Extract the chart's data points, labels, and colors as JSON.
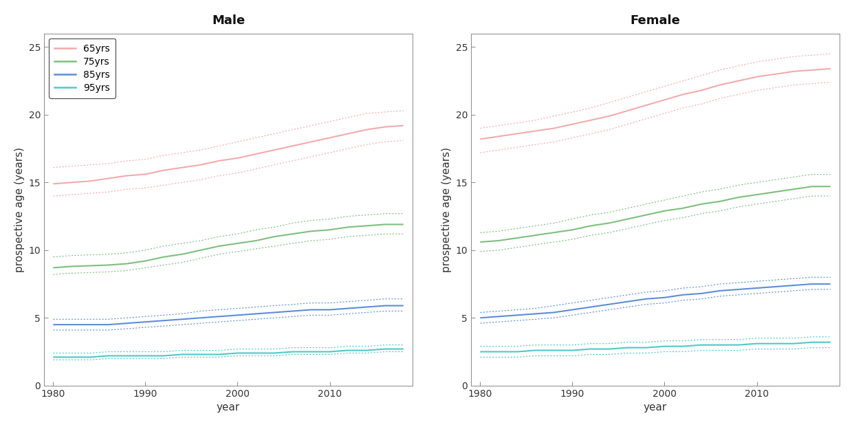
{
  "years": [
    1980,
    1982,
    1984,
    1986,
    1988,
    1990,
    1992,
    1994,
    1996,
    1998,
    2000,
    2002,
    2004,
    2006,
    2008,
    2010,
    2012,
    2014,
    2016,
    2018
  ],
  "male": {
    "65yrs": {
      "mid": [
        14.9,
        15.0,
        15.1,
        15.3,
        15.5,
        15.6,
        15.9,
        16.1,
        16.3,
        16.6,
        16.8,
        17.1,
        17.4,
        17.7,
        18.0,
        18.3,
        18.6,
        18.9,
        19.1,
        19.2
      ],
      "lo": [
        14.0,
        14.1,
        14.2,
        14.3,
        14.5,
        14.6,
        14.8,
        15.0,
        15.2,
        15.5,
        15.7,
        16.0,
        16.3,
        16.6,
        16.9,
        17.2,
        17.5,
        17.8,
        18.0,
        18.1
      ],
      "hi": [
        16.1,
        16.2,
        16.3,
        16.4,
        16.6,
        16.7,
        17.0,
        17.2,
        17.4,
        17.7,
        18.0,
        18.3,
        18.6,
        18.9,
        19.2,
        19.5,
        19.8,
        20.1,
        20.2,
        20.3
      ]
    },
    "75yrs": {
      "mid": [
        8.7,
        8.8,
        8.85,
        8.9,
        9.0,
        9.2,
        9.5,
        9.7,
        10.0,
        10.3,
        10.5,
        10.7,
        11.0,
        11.2,
        11.4,
        11.5,
        11.7,
        11.8,
        11.9,
        11.9
      ],
      "lo": [
        8.2,
        8.3,
        8.35,
        8.4,
        8.5,
        8.7,
        8.9,
        9.1,
        9.4,
        9.7,
        9.9,
        10.1,
        10.3,
        10.5,
        10.7,
        10.8,
        11.0,
        11.1,
        11.2,
        11.2
      ],
      "hi": [
        9.5,
        9.6,
        9.65,
        9.7,
        9.8,
        10.0,
        10.3,
        10.5,
        10.7,
        11.0,
        11.2,
        11.5,
        11.7,
        12.0,
        12.2,
        12.3,
        12.5,
        12.6,
        12.7,
        12.7
      ]
    },
    "85yrs": {
      "mid": [
        4.5,
        4.5,
        4.5,
        4.5,
        4.6,
        4.7,
        4.8,
        4.9,
        5.0,
        5.1,
        5.2,
        5.3,
        5.4,
        5.5,
        5.6,
        5.6,
        5.7,
        5.8,
        5.9,
        5.9
      ],
      "lo": [
        4.1,
        4.1,
        4.1,
        4.1,
        4.2,
        4.3,
        4.4,
        4.5,
        4.6,
        4.7,
        4.8,
        4.9,
        5.0,
        5.1,
        5.2,
        5.2,
        5.3,
        5.4,
        5.5,
        5.5
      ],
      "hi": [
        4.9,
        4.9,
        4.9,
        4.9,
        5.0,
        5.1,
        5.2,
        5.3,
        5.5,
        5.6,
        5.7,
        5.8,
        5.9,
        6.0,
        6.1,
        6.1,
        6.2,
        6.3,
        6.4,
        6.4
      ]
    },
    "95yrs": {
      "mid": [
        2.1,
        2.1,
        2.1,
        2.2,
        2.2,
        2.2,
        2.2,
        2.3,
        2.3,
        2.3,
        2.4,
        2.4,
        2.4,
        2.5,
        2.5,
        2.5,
        2.6,
        2.6,
        2.7,
        2.7
      ],
      "lo": [
        1.9,
        1.9,
        1.9,
        2.0,
        2.0,
        2.0,
        2.0,
        2.1,
        2.1,
        2.1,
        2.2,
        2.2,
        2.2,
        2.3,
        2.3,
        2.3,
        2.4,
        2.4,
        2.5,
        2.5
      ],
      "hi": [
        2.4,
        2.4,
        2.4,
        2.5,
        2.5,
        2.5,
        2.5,
        2.6,
        2.6,
        2.6,
        2.7,
        2.7,
        2.7,
        2.8,
        2.8,
        2.8,
        2.9,
        2.9,
        3.0,
        3.0
      ]
    }
  },
  "female": {
    "65yrs": {
      "mid": [
        18.2,
        18.4,
        18.6,
        18.8,
        19.0,
        19.3,
        19.6,
        19.9,
        20.3,
        20.7,
        21.1,
        21.5,
        21.8,
        22.2,
        22.5,
        22.8,
        23.0,
        23.2,
        23.3,
        23.4
      ],
      "lo": [
        17.2,
        17.4,
        17.6,
        17.8,
        18.0,
        18.3,
        18.6,
        18.9,
        19.3,
        19.7,
        20.1,
        20.5,
        20.8,
        21.2,
        21.5,
        21.8,
        22.0,
        22.2,
        22.3,
        22.4
      ],
      "hi": [
        19.0,
        19.2,
        19.4,
        19.6,
        19.9,
        20.2,
        20.5,
        20.9,
        21.3,
        21.7,
        22.1,
        22.5,
        22.9,
        23.3,
        23.6,
        23.9,
        24.1,
        24.3,
        24.4,
        24.5
      ]
    },
    "75yrs": {
      "mid": [
        10.6,
        10.7,
        10.9,
        11.1,
        11.3,
        11.5,
        11.8,
        12.0,
        12.3,
        12.6,
        12.9,
        13.1,
        13.4,
        13.6,
        13.9,
        14.1,
        14.3,
        14.5,
        14.7,
        14.7
      ],
      "lo": [
        9.9,
        10.0,
        10.2,
        10.4,
        10.6,
        10.8,
        11.1,
        11.3,
        11.6,
        11.9,
        12.2,
        12.4,
        12.7,
        12.9,
        13.2,
        13.4,
        13.6,
        13.8,
        14.0,
        14.0
      ],
      "hi": [
        11.3,
        11.4,
        11.6,
        11.8,
        12.0,
        12.3,
        12.6,
        12.8,
        13.1,
        13.4,
        13.7,
        14.0,
        14.3,
        14.5,
        14.8,
        15.0,
        15.2,
        15.4,
        15.6,
        15.6
      ]
    },
    "85yrs": {
      "mid": [
        5.0,
        5.1,
        5.2,
        5.3,
        5.4,
        5.6,
        5.8,
        6.0,
        6.2,
        6.4,
        6.5,
        6.7,
        6.8,
        7.0,
        7.1,
        7.2,
        7.3,
        7.4,
        7.5,
        7.5
      ],
      "lo": [
        4.6,
        4.7,
        4.8,
        4.9,
        5.0,
        5.2,
        5.4,
        5.6,
        5.8,
        6.0,
        6.1,
        6.3,
        6.4,
        6.6,
        6.7,
        6.8,
        6.9,
        7.0,
        7.1,
        7.1
      ],
      "hi": [
        5.4,
        5.5,
        5.6,
        5.7,
        5.9,
        6.1,
        6.3,
        6.5,
        6.7,
        6.9,
        7.0,
        7.2,
        7.3,
        7.5,
        7.6,
        7.7,
        7.8,
        7.9,
        8.0,
        8.0
      ]
    },
    "95yrs": {
      "mid": [
        2.5,
        2.5,
        2.5,
        2.6,
        2.6,
        2.6,
        2.7,
        2.7,
        2.8,
        2.8,
        2.9,
        2.9,
        3.0,
        3.0,
        3.0,
        3.1,
        3.1,
        3.1,
        3.2,
        3.2
      ],
      "lo": [
        2.1,
        2.1,
        2.1,
        2.2,
        2.2,
        2.2,
        2.3,
        2.3,
        2.4,
        2.4,
        2.5,
        2.5,
        2.6,
        2.6,
        2.6,
        2.7,
        2.7,
        2.7,
        2.8,
        2.8
      ],
      "hi": [
        2.9,
        2.9,
        2.9,
        3.0,
        3.0,
        3.0,
        3.1,
        3.1,
        3.2,
        3.2,
        3.3,
        3.3,
        3.4,
        3.4,
        3.4,
        3.5,
        3.5,
        3.5,
        3.6,
        3.6
      ]
    }
  },
  "colors": {
    "65yrs": "#F4AAAA",
    "75yrs": "#7DBF7D",
    "85yrs": "#5B8DD9",
    "95yrs": "#4EC9C9"
  },
  "ages": [
    "65yrs",
    "75yrs",
    "85yrs",
    "95yrs"
  ],
  "ylim": [
    0,
    26
  ],
  "yticks": [
    0,
    5,
    10,
    15,
    20,
    25
  ],
  "xlim": [
    1979,
    2019
  ],
  "xticks": [
    1980,
    1990,
    2000,
    2010
  ],
  "ylabel": "prospective age (years)",
  "xlabel": "year",
  "title_male": "Male",
  "title_female": "Female",
  "bg_color": "#ffffff",
  "panel_bg": "#ffffff"
}
